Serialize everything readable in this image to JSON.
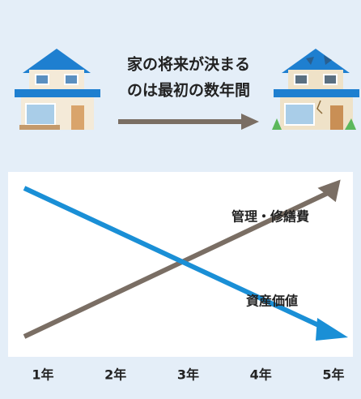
{
  "header": {
    "caption_lines": [
      "家の将来が決まる",
      "のは最初の数年間"
    ]
  },
  "diagram": {
    "lines": [
      {
        "label": "管理・修繕費"
      },
      {
        "label": "資産価値"
      }
    ],
    "x_labels": [
      "1年",
      "2年",
      "3年",
      "4年",
      "5年"
    ]
  }
}
